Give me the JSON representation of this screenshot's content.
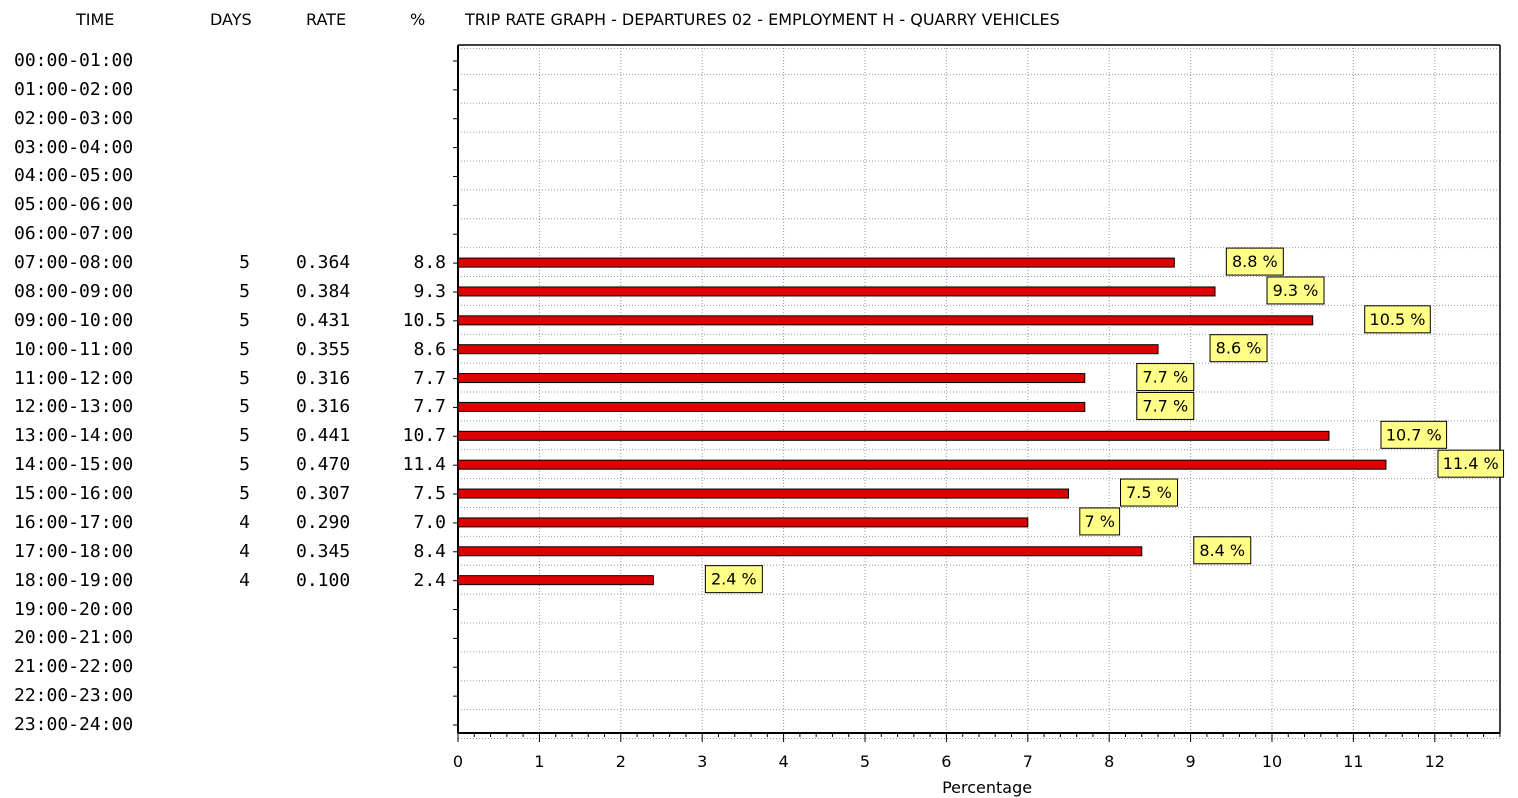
{
  "header": {
    "time": "TIME",
    "days": "DAYS",
    "rate": "RATE",
    "pct": "%",
    "title": "TRIP RATE GRAPH - DEPARTURES   02 - EMPLOYMENT  H - QUARRY     VEHICLES"
  },
  "rows": [
    {
      "time": "00:00-01:00",
      "days": "",
      "rate": "",
      "pct": ""
    },
    {
      "time": "01:00-02:00",
      "days": "",
      "rate": "",
      "pct": ""
    },
    {
      "time": "02:00-03:00",
      "days": "",
      "rate": "",
      "pct": ""
    },
    {
      "time": "03:00-04:00",
      "days": "",
      "rate": "",
      "pct": ""
    },
    {
      "time": "04:00-05:00",
      "days": "",
      "rate": "",
      "pct": ""
    },
    {
      "time": "05:00-06:00",
      "days": "",
      "rate": "",
      "pct": ""
    },
    {
      "time": "06:00-07:00",
      "days": "",
      "rate": "",
      "pct": ""
    },
    {
      "time": "07:00-08:00",
      "days": "5",
      "rate": "0.364",
      "pct": "8.8"
    },
    {
      "time": "08:00-09:00",
      "days": "5",
      "rate": "0.384",
      "pct": "9.3"
    },
    {
      "time": "09:00-10:00",
      "days": "5",
      "rate": "0.431",
      "pct": "10.5"
    },
    {
      "time": "10:00-11:00",
      "days": "5",
      "rate": "0.355",
      "pct": "8.6"
    },
    {
      "time": "11:00-12:00",
      "days": "5",
      "rate": "0.316",
      "pct": "7.7"
    },
    {
      "time": "12:00-13:00",
      "days": "5",
      "rate": "0.316",
      "pct": "7.7"
    },
    {
      "time": "13:00-14:00",
      "days": "5",
      "rate": "0.441",
      "pct": "10.7"
    },
    {
      "time": "14:00-15:00",
      "days": "5",
      "rate": "0.470",
      "pct": "11.4"
    },
    {
      "time": "15:00-16:00",
      "days": "5",
      "rate": "0.307",
      "pct": "7.5"
    },
    {
      "time": "16:00-17:00",
      "days": "4",
      "rate": "0.290",
      "pct": "7.0"
    },
    {
      "time": "17:00-18:00",
      "days": "4",
      "rate": "0.345",
      "pct": "8.4"
    },
    {
      "time": "18:00-19:00",
      "days": "4",
      "rate": "0.100",
      "pct": "2.4"
    },
    {
      "time": "19:00-20:00",
      "days": "",
      "rate": "",
      "pct": ""
    },
    {
      "time": "20:00-21:00",
      "days": "",
      "rate": "",
      "pct": ""
    },
    {
      "time": "21:00-22:00",
      "days": "",
      "rate": "",
      "pct": ""
    },
    {
      "time": "22:00-23:00",
      "days": "",
      "rate": "",
      "pct": ""
    },
    {
      "time": "23:00-24:00",
      "days": "",
      "rate": "",
      "pct": ""
    }
  ],
  "chart_data": {
    "type": "bar",
    "orientation": "horizontal",
    "title": "TRIP RATE GRAPH - DEPARTURES   02 - EMPLOYMENT  H - QUARRY     VEHICLES",
    "xlabel": "Percentage",
    "ylabel": "",
    "xlim": [
      0,
      12.8
    ],
    "xticks": [
      "0",
      "1",
      "2",
      "3",
      "4",
      "5",
      "6",
      "7",
      "8",
      "9",
      "10",
      "11",
      "12"
    ],
    "grid": true,
    "categories": [
      "00:00-01:00",
      "01:00-02:00",
      "02:00-03:00",
      "03:00-04:00",
      "04:00-05:00",
      "05:00-06:00",
      "06:00-07:00",
      "07:00-08:00",
      "08:00-09:00",
      "09:00-10:00",
      "10:00-11:00",
      "11:00-12:00",
      "12:00-13:00",
      "13:00-14:00",
      "14:00-15:00",
      "15:00-16:00",
      "16:00-17:00",
      "17:00-18:00",
      "18:00-19:00",
      "19:00-20:00",
      "20:00-21:00",
      "21:00-22:00",
      "22:00-23:00",
      "23:00-24:00"
    ],
    "values": [
      null,
      null,
      null,
      null,
      null,
      null,
      null,
      8.8,
      9.3,
      10.5,
      8.6,
      7.7,
      7.7,
      10.7,
      11.4,
      7.5,
      7.0,
      8.4,
      2.4,
      null,
      null,
      null,
      null,
      null
    ],
    "data_labels": [
      "",
      "",
      "",
      "",
      "",
      "",
      "",
      "8.8 %",
      "9.3 %",
      "10.5 %",
      "8.6 %",
      "7.7 %",
      "7.7 %",
      "10.7 %",
      "11.4 %",
      "7.5 %",
      "7 %",
      "8.4 %",
      "2.4 %",
      "",
      "",
      "",
      "",
      ""
    ],
    "bar_color": "#dd0000",
    "label_color": "#ffff88"
  }
}
